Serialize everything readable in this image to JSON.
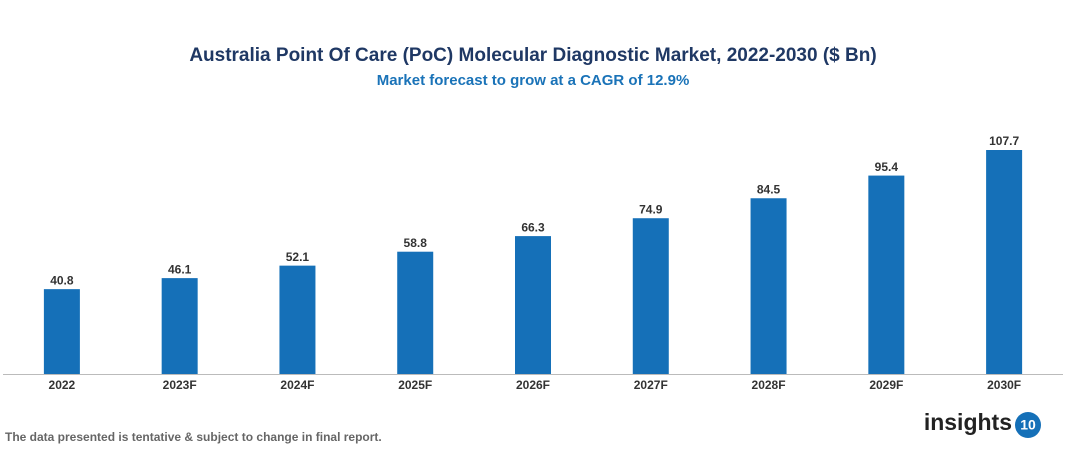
{
  "chart_data": {
    "type": "bar",
    "title": "Australia Point Of Care (PoC) Molecular Diagnostic Market, 2022-2030 ($ Bn)",
    "subtitle": "Market forecast to grow at a CAGR of 12.9%",
    "categories": [
      "2022",
      "2023F",
      "2024F",
      "2025F",
      "2026F",
      "2027F",
      "2028F",
      "2029F",
      "2030F"
    ],
    "values": [
      40.8,
      46.1,
      52.1,
      58.8,
      66.3,
      74.9,
      84.5,
      95.4,
      107.7
    ],
    "color": "#1570b8"
  },
  "footnote": "The data presented is tentative & subject to change in final report.",
  "logo": {
    "text": "insights",
    "badge": "10"
  }
}
